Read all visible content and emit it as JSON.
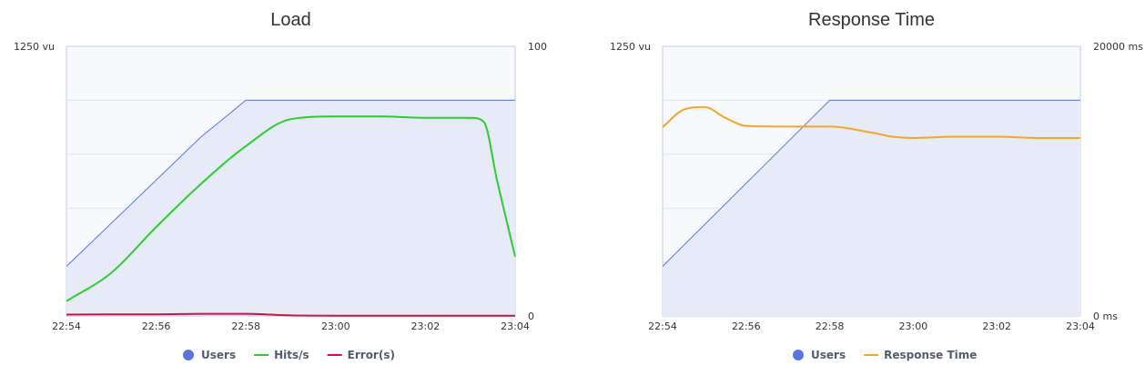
{
  "colors": {
    "users": "#5b75e0",
    "users_fill": "#e6ebf7",
    "hits": "#2ecc2e",
    "errors": "#cc1144",
    "response_time": "#f5a623",
    "grid": "#dde3ee",
    "plot_border": "#c0cce8"
  },
  "chart_data": [
    {
      "type": "line",
      "title": "Load",
      "x_categories": [
        "22:54",
        "22:56",
        "22:58",
        "23:00",
        "23:02",
        "23:04"
      ],
      "x_range_minutes": [
        0,
        10
      ],
      "y_left": {
        "label_top": "1250 vu",
        "range": [
          0,
          1250
        ]
      },
      "y_right": {
        "label_top": "100",
        "label_bottom": "0",
        "range": [
          0,
          100
        ]
      },
      "grid": true,
      "legend_position": "bottom",
      "series": [
        {
          "name": "Users",
          "axis": "left",
          "style": "area",
          "x": [
            0,
            3,
            4,
            10
          ],
          "y": [
            230,
            830,
            1000,
            1000
          ]
        },
        {
          "name": "Hits/s",
          "axis": "right",
          "style": "smooth",
          "x": [
            0,
            1,
            2,
            3,
            4,
            5,
            6,
            7,
            8,
            9,
            9.3,
            9.6,
            10
          ],
          "y": [
            5.5,
            16,
            33,
            49,
            63,
            73,
            74,
            74,
            73.5,
            73.5,
            72,
            50,
            22
          ]
        },
        {
          "name": "Error(s)",
          "axis": "right",
          "style": "smooth",
          "x": [
            0,
            1,
            2,
            3,
            4,
            5,
            6,
            7,
            8,
            9,
            10
          ],
          "y": [
            0.5,
            0.6,
            0.6,
            0.8,
            0.8,
            0.2,
            0.1,
            0.1,
            0.1,
            0.1,
            0.1
          ]
        }
      ]
    },
    {
      "type": "line",
      "title": "Response Time",
      "x_categories": [
        "22:54",
        "22:56",
        "22:58",
        "23:00",
        "23:02",
        "23:04"
      ],
      "x_range_minutes": [
        0,
        10
      ],
      "y_left": {
        "label_top": "1250 vu",
        "range": [
          0,
          1250
        ]
      },
      "y_right": {
        "label_top": "20000 ms",
        "label_bottom": "0 ms",
        "range": [
          0,
          20000
        ]
      },
      "grid": true,
      "legend_position": "bottom",
      "series": [
        {
          "name": "Users",
          "axis": "left",
          "style": "area",
          "x": [
            0,
            4,
            10
          ],
          "y": [
            230,
            1000,
            1000
          ]
        },
        {
          "name": "Response Time",
          "axis": "right",
          "style": "smooth",
          "x": [
            0,
            0.5,
            1,
            1.5,
            2,
            3,
            4,
            5,
            5.5,
            6,
            7,
            8,
            9,
            10
          ],
          "y": [
            14000,
            15300,
            15500,
            14700,
            14100,
            14050,
            14050,
            13600,
            13300,
            13200,
            13300,
            13300,
            13200,
            13200
          ]
        }
      ]
    }
  ]
}
